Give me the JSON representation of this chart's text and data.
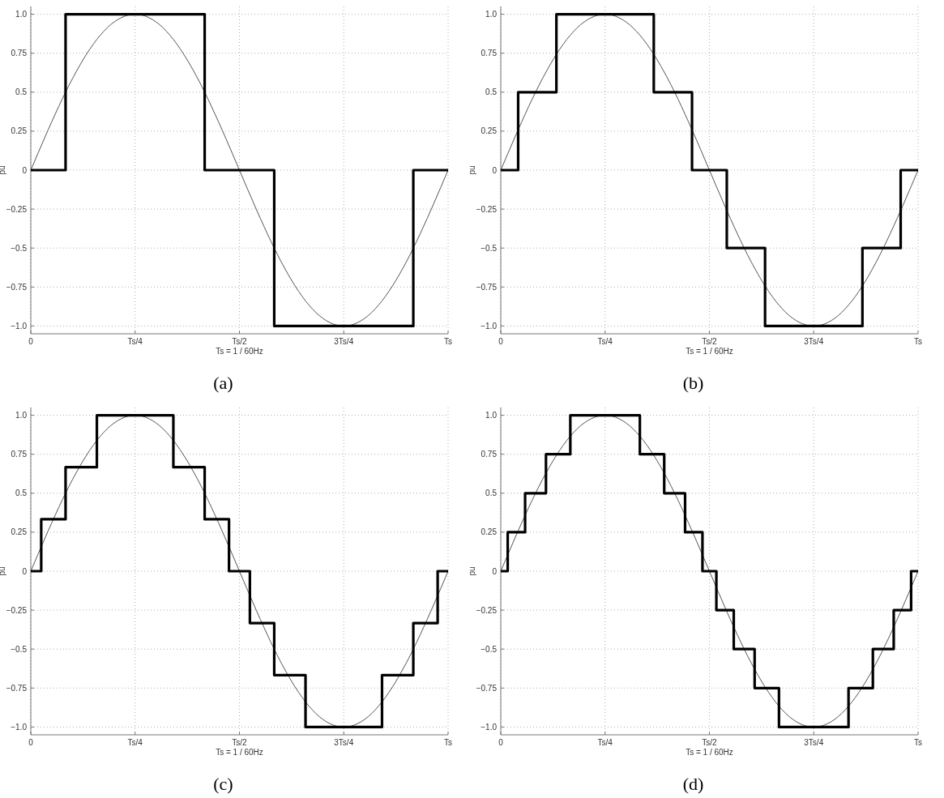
{
  "chart_data": [
    {
      "type": "line",
      "xlabel": "Ts = 1 / 60Hz",
      "ylabel": "pu",
      "annotations": [
        "(a)"
      ],
      "ylim": [
        -1.05,
        1.05
      ],
      "yticks": [
        {
          "value": -1,
          "label": "−1.0"
        },
        {
          "value": -0.75,
          "label": "−0.75"
        },
        {
          "value": -0.5,
          "label": "−0.5"
        },
        {
          "value": -0.25,
          "label": "−0.25"
        },
        0,
        0.25,
        0.5,
        0.75,
        {
          "value": 1,
          "label": "1.0"
        }
      ],
      "grid": true,
      "categories": [
        "0",
        null,
        null,
        null,
        null,
        null,
        null,
        null,
        null,
        null,
        null,
        null,
        null,
        null,
        null,
        null,
        null,
        null,
        null,
        null,
        null,
        null,
        null,
        null,
        null,
        null,
        null,
        null,
        null,
        null,
        "Ts/4",
        null,
        null,
        null,
        null,
        null,
        null,
        null,
        null,
        null,
        null,
        null,
        null,
        null,
        null,
        null,
        null,
        null,
        null,
        null,
        null,
        null,
        null,
        null,
        null,
        null,
        null,
        null,
        null,
        null,
        "Ts/2",
        null,
        null,
        null,
        null,
        null,
        null,
        null,
        null,
        null,
        null,
        null,
        null,
        null,
        null,
        null,
        null,
        null,
        null,
        null,
        null,
        null,
        null,
        null,
        null,
        null,
        null,
        null,
        null,
        null,
        "3Ts/4",
        null,
        null,
        null,
        null,
        null,
        null,
        null,
        null,
        null,
        null,
        null,
        null,
        null,
        null,
        null,
        null,
        null,
        null,
        null,
        null,
        null,
        null,
        null,
        null,
        null,
        null,
        null,
        null,
        null,
        "Ts"
      ],
      "series": [
        {
          "type": "line",
          "color": "#555555",
          "values": [
            0,
            0.052,
            0.105,
            0.156,
            0.208,
            0.259,
            0.309,
            0.358,
            0.407,
            0.454,
            0.5,
            0.545,
            0.588,
            0.629,
            0.669,
            0.707,
            0.743,
            0.777,
            0.809,
            0.839,
            0.866,
            0.891,
            0.914,
            0.934,
            0.951,
            0.966,
            0.978,
            0.988,
            0.995,
            0.999,
            1,
            0.999,
            0.995,
            0.988,
            0.978,
            0.966,
            0.951,
            0.934,
            0.914,
            0.891,
            0.866,
            0.839,
            0.809,
            0.777,
            0.743,
            0.707,
            0.669,
            0.629,
            0.588,
            0.545,
            0.5,
            0.454,
            0.407,
            0.358,
            0.309,
            0.259,
            0.208,
            0.156,
            0.105,
            0.052,
            0,
            -0.052,
            -0.105,
            -0.156,
            -0.208,
            -0.259,
            -0.309,
            -0.358,
            -0.407,
            -0.454,
            -0.5,
            -0.545,
            -0.588,
            -0.629,
            -0.669,
            -0.707,
            -0.743,
            -0.777,
            -0.809,
            -0.839,
            -0.866,
            -0.891,
            -0.914,
            -0.934,
            -0.951,
            -0.966,
            -0.978,
            -0.988,
            -0.995,
            -0.999,
            -1,
            -0.999,
            -0.995,
            -0.988,
            -0.978,
            -0.966,
            -0.951,
            -0.934,
            -0.914,
            -0.891,
            -0.866,
            -0.839,
            -0.809,
            -0.777,
            -0.743,
            -0.707,
            -0.669,
            -0.629,
            -0.588,
            -0.545,
            -0.5,
            -0.454,
            -0.407,
            -0.358,
            -0.309,
            -0.259,
            -0.208,
            -0.156,
            -0.105,
            -0.052,
            0
          ]
        },
        {
          "type": "step",
          "color": "#000000",
          "values": [
            0,
            0,
            0,
            0,
            0,
            0,
            0,
            0,
            0,
            0,
            1,
            1,
            1,
            1,
            1,
            1,
            1,
            1,
            1,
            1,
            1,
            1,
            1,
            1,
            1,
            1,
            1,
            1,
            1,
            1,
            1,
            1,
            1,
            1,
            1,
            1,
            1,
            1,
            1,
            1,
            1,
            1,
            1,
            1,
            1,
            1,
            1,
            1,
            1,
            1,
            0,
            0,
            0,
            0,
            0,
            0,
            0,
            0,
            0,
            0,
            0,
            0,
            0,
            0,
            0,
            0,
            0,
            0,
            0,
            0,
            -1,
            -1,
            -1,
            -1,
            -1,
            -1,
            -1,
            -1,
            -1,
            -1,
            -1,
            -1,
            -1,
            -1,
            -1,
            -1,
            -1,
            -1,
            -1,
            -1,
            -1,
            -1,
            -1,
            -1,
            -1,
            -1,
            -1,
            -1,
            -1,
            -1,
            -1,
            -1,
            -1,
            -1,
            -1,
            -1,
            -1,
            -1,
            -1,
            -1,
            0,
            0,
            0,
            0,
            0,
            0,
            0,
            0,
            0,
            0,
            0
          ]
        }
      ]
    },
    {
      "type": "line",
      "xlabel": "Ts = 1 / 60Hz",
      "ylabel": "pu",
      "annotations": [
        "(b)"
      ],
      "ylim": [
        -1.05,
        1.05
      ],
      "yticks": [
        {
          "value": -1,
          "label": "−1.0"
        },
        {
          "value": -0.75,
          "label": "−0.75"
        },
        {
          "value": -0.5,
          "label": "−0.5"
        },
        {
          "value": -0.25,
          "label": "−0.25"
        },
        0,
        0.25,
        0.5,
        0.75,
        {
          "value": 1,
          "label": "1.0"
        }
      ],
      "grid": true,
      "categories": [
        "0",
        null,
        null,
        null,
        null,
        null,
        null,
        null,
        null,
        null,
        null,
        null,
        null,
        null,
        null,
        null,
        null,
        null,
        null,
        null,
        null,
        null,
        null,
        null,
        null,
        null,
        null,
        null,
        null,
        null,
        "Ts/4",
        null,
        null,
        null,
        null,
        null,
        null,
        null,
        null,
        null,
        null,
        null,
        null,
        null,
        null,
        null,
        null,
        null,
        null,
        null,
        null,
        null,
        null,
        null,
        null,
        null,
        null,
        null,
        null,
        null,
        "Ts/2",
        null,
        null,
        null,
        null,
        null,
        null,
        null,
        null,
        null,
        null,
        null,
        null,
        null,
        null,
        null,
        null,
        null,
        null,
        null,
        null,
        null,
        null,
        null,
        null,
        null,
        null,
        null,
        null,
        null,
        "3Ts/4",
        null,
        null,
        null,
        null,
        null,
        null,
        null,
        null,
        null,
        null,
        null,
        null,
        null,
        null,
        null,
        null,
        null,
        null,
        null,
        null,
        null,
        null,
        null,
        null,
        null,
        null,
        null,
        null,
        null,
        "Ts"
      ],
      "series": [
        {
          "type": "line",
          "color": "#555555",
          "values": [
            0,
            0.052,
            0.105,
            0.156,
            0.208,
            0.259,
            0.309,
            0.358,
            0.407,
            0.454,
            0.5,
            0.545,
            0.588,
            0.629,
            0.669,
            0.707,
            0.743,
            0.777,
            0.809,
            0.839,
            0.866,
            0.891,
            0.914,
            0.934,
            0.951,
            0.966,
            0.978,
            0.988,
            0.995,
            0.999,
            1,
            0.999,
            0.995,
            0.988,
            0.978,
            0.966,
            0.951,
            0.934,
            0.914,
            0.891,
            0.866,
            0.839,
            0.809,
            0.777,
            0.743,
            0.707,
            0.669,
            0.629,
            0.588,
            0.545,
            0.5,
            0.454,
            0.407,
            0.358,
            0.309,
            0.259,
            0.208,
            0.156,
            0.105,
            0.052,
            0,
            -0.052,
            -0.105,
            -0.156,
            -0.208,
            -0.259,
            -0.309,
            -0.358,
            -0.407,
            -0.454,
            -0.5,
            -0.545,
            -0.588,
            -0.629,
            -0.669,
            -0.707,
            -0.743,
            -0.777,
            -0.809,
            -0.839,
            -0.866,
            -0.891,
            -0.914,
            -0.934,
            -0.951,
            -0.966,
            -0.978,
            -0.988,
            -0.995,
            -0.999,
            -1,
            -0.999,
            -0.995,
            -0.988,
            -0.978,
            -0.966,
            -0.951,
            -0.934,
            -0.914,
            -0.891,
            -0.866,
            -0.839,
            -0.809,
            -0.777,
            -0.743,
            -0.707,
            -0.669,
            -0.629,
            -0.588,
            -0.545,
            -0.5,
            -0.454,
            -0.407,
            -0.358,
            -0.309,
            -0.259,
            -0.208,
            -0.156,
            -0.105,
            -0.052,
            0
          ]
        },
        {
          "type": "step",
          "color": "#000000",
          "values": [
            0,
            0,
            0,
            0,
            0,
            0.5,
            0.5,
            0.5,
            0.5,
            0.5,
            0.5,
            0.5,
            0.5,
            0.5,
            0.5,
            0.5,
            1,
            1,
            1,
            1,
            1,
            1,
            1,
            1,
            1,
            1,
            1,
            1,
            1,
            1,
            1,
            1,
            1,
            1,
            1,
            1,
            1,
            1,
            1,
            1,
            1,
            1,
            1,
            1,
            0.5,
            0.5,
            0.5,
            0.5,
            0.5,
            0.5,
            0.5,
            0.5,
            0.5,
            0.5,
            0.5,
            0,
            0,
            0,
            0,
            0,
            0,
            0,
            0,
            0,
            0,
            -0.5,
            -0.5,
            -0.5,
            -0.5,
            -0.5,
            -0.5,
            -0.5,
            -0.5,
            -0.5,
            -0.5,
            -0.5,
            -1,
            -1,
            -1,
            -1,
            -1,
            -1,
            -1,
            -1,
            -1,
            -1,
            -1,
            -1,
            -1,
            -1,
            -1,
            -1,
            -1,
            -1,
            -1,
            -1,
            -1,
            -1,
            -1,
            -1,
            -1,
            -1,
            -1,
            -1,
            -0.5,
            -0.5,
            -0.5,
            -0.5,
            -0.5,
            -0.5,
            -0.5,
            -0.5,
            -0.5,
            -0.5,
            -0.5,
            0,
            0,
            0,
            0,
            0,
            0
          ]
        }
      ]
    },
    {
      "type": "line",
      "xlabel": "Ts = 1 / 60Hz",
      "ylabel": "pu",
      "annotations": [
        "(c)"
      ],
      "ylim": [
        -1.05,
        1.05
      ],
      "yticks": [
        {
          "value": -1,
          "label": "−1.0"
        },
        {
          "value": -0.75,
          "label": "−0.75"
        },
        {
          "value": -0.5,
          "label": "−0.5"
        },
        {
          "value": -0.25,
          "label": "−0.25"
        },
        0,
        0.25,
        0.5,
        0.75,
        {
          "value": 1,
          "label": "1.0"
        }
      ],
      "grid": true,
      "categories": [
        "0",
        null,
        null,
        null,
        null,
        null,
        null,
        null,
        null,
        null,
        null,
        null,
        null,
        null,
        null,
        null,
        null,
        null,
        null,
        null,
        null,
        null,
        null,
        null,
        null,
        null,
        null,
        null,
        null,
        null,
        "Ts/4",
        null,
        null,
        null,
        null,
        null,
        null,
        null,
        null,
        null,
        null,
        null,
        null,
        null,
        null,
        null,
        null,
        null,
        null,
        null,
        null,
        null,
        null,
        null,
        null,
        null,
        null,
        null,
        null,
        null,
        "Ts/2",
        null,
        null,
        null,
        null,
        null,
        null,
        null,
        null,
        null,
        null,
        null,
        null,
        null,
        null,
        null,
        null,
        null,
        null,
        null,
        null,
        null,
        null,
        null,
        null,
        null,
        null,
        null,
        null,
        null,
        "3Ts/4",
        null,
        null,
        null,
        null,
        null,
        null,
        null,
        null,
        null,
        null,
        null,
        null,
        null,
        null,
        null,
        null,
        null,
        null,
        null,
        null,
        null,
        null,
        null,
        null,
        null,
        null,
        null,
        null,
        null,
        "Ts"
      ],
      "series": [
        {
          "type": "line",
          "color": "#555555",
          "values": [
            0,
            0.052,
            0.105,
            0.156,
            0.208,
            0.259,
            0.309,
            0.358,
            0.407,
            0.454,
            0.5,
            0.545,
            0.588,
            0.629,
            0.669,
            0.707,
            0.743,
            0.777,
            0.809,
            0.839,
            0.866,
            0.891,
            0.914,
            0.934,
            0.951,
            0.966,
            0.978,
            0.988,
            0.995,
            0.999,
            1,
            0.999,
            0.995,
            0.988,
            0.978,
            0.966,
            0.951,
            0.934,
            0.914,
            0.891,
            0.866,
            0.839,
            0.809,
            0.777,
            0.743,
            0.707,
            0.669,
            0.629,
            0.588,
            0.545,
            0.5,
            0.454,
            0.407,
            0.358,
            0.309,
            0.259,
            0.208,
            0.156,
            0.105,
            0.052,
            0,
            -0.052,
            -0.105,
            -0.156,
            -0.208,
            -0.259,
            -0.309,
            -0.358,
            -0.407,
            -0.454,
            -0.5,
            -0.545,
            -0.588,
            -0.629,
            -0.669,
            -0.707,
            -0.743,
            -0.777,
            -0.809,
            -0.839,
            -0.866,
            -0.891,
            -0.914,
            -0.934,
            -0.951,
            -0.966,
            -0.978,
            -0.988,
            -0.995,
            -0.999,
            -1,
            -0.999,
            -0.995,
            -0.988,
            -0.978,
            -0.966,
            -0.951,
            -0.934,
            -0.914,
            -0.891,
            -0.866,
            -0.839,
            -0.809,
            -0.777,
            -0.743,
            -0.707,
            -0.669,
            -0.629,
            -0.588,
            -0.545,
            -0.5,
            -0.454,
            -0.407,
            -0.358,
            -0.309,
            -0.259,
            -0.208,
            -0.156,
            -0.105,
            -0.052,
            0
          ]
        },
        {
          "type": "step",
          "color": "#000000",
          "values": [
            0,
            0,
            0,
            0.333,
            0.333,
            0.333,
            0.333,
            0.333,
            0.333,
            0.333,
            0.667,
            0.667,
            0.667,
            0.667,
            0.667,
            0.667,
            0.667,
            0.667,
            0.667,
            1,
            1,
            1,
            1,
            1,
            1,
            1,
            1,
            1,
            1,
            1,
            1,
            1,
            1,
            1,
            1,
            1,
            1,
            1,
            1,
            1,
            1,
            0.667,
            0.667,
            0.667,
            0.667,
            0.667,
            0.667,
            0.667,
            0.667,
            0.667,
            0.333,
            0.333,
            0.333,
            0.333,
            0.333,
            0.333,
            0.333,
            0,
            0,
            0,
            0,
            0,
            0,
            -0.333,
            -0.333,
            -0.333,
            -0.333,
            -0.333,
            -0.333,
            -0.333,
            -0.667,
            -0.667,
            -0.667,
            -0.667,
            -0.667,
            -0.667,
            -0.667,
            -0.667,
            -0.667,
            -1,
            -1,
            -1,
            -1,
            -1,
            -1,
            -1,
            -1,
            -1,
            -1,
            -1,
            -1,
            -1,
            -1,
            -1,
            -1,
            -1,
            -1,
            -1,
            -1,
            -1,
            -1,
            -0.667,
            -0.667,
            -0.667,
            -0.667,
            -0.667,
            -0.667,
            -0.667,
            -0.667,
            -0.667,
            -0.333,
            -0.333,
            -0.333,
            -0.333,
            -0.333,
            -0.333,
            -0.333,
            0,
            0,
            0,
            0
          ]
        }
      ]
    },
    {
      "type": "line",
      "xlabel": "Ts = 1 / 60Hz",
      "ylabel": "pu",
      "annotations": [
        "(d)"
      ],
      "ylim": [
        -1.05,
        1.05
      ],
      "yticks": [
        {
          "value": -1,
          "label": "−1.0"
        },
        {
          "value": -0.75,
          "label": "−0.75"
        },
        {
          "value": -0.5,
          "label": "−0.5"
        },
        {
          "value": -0.25,
          "label": "−0.25"
        },
        0,
        0.25,
        0.5,
        0.75,
        {
          "value": 1,
          "label": "1.0"
        }
      ],
      "grid": true,
      "categories": [
        "0",
        null,
        null,
        null,
        null,
        null,
        null,
        null,
        null,
        null,
        null,
        null,
        null,
        null,
        null,
        null,
        null,
        null,
        null,
        null,
        null,
        null,
        null,
        null,
        null,
        null,
        null,
        null,
        null,
        null,
        "Ts/4",
        null,
        null,
        null,
        null,
        null,
        null,
        null,
        null,
        null,
        null,
        null,
        null,
        null,
        null,
        null,
        null,
        null,
        null,
        null,
        null,
        null,
        null,
        null,
        null,
        null,
        null,
        null,
        null,
        null,
        "Ts/2",
        null,
        null,
        null,
        null,
        null,
        null,
        null,
        null,
        null,
        null,
        null,
        null,
        null,
        null,
        null,
        null,
        null,
        null,
        null,
        null,
        null,
        null,
        null,
        null,
        null,
        null,
        null,
        null,
        null,
        "3Ts/4",
        null,
        null,
        null,
        null,
        null,
        null,
        null,
        null,
        null,
        null,
        null,
        null,
        null,
        null,
        null,
        null,
        null,
        null,
        null,
        null,
        null,
        null,
        null,
        null,
        null,
        null,
        null,
        null,
        null,
        "Ts"
      ],
      "series": [
        {
          "type": "line",
          "color": "#555555",
          "values": [
            0,
            0.052,
            0.105,
            0.156,
            0.208,
            0.259,
            0.309,
            0.358,
            0.407,
            0.454,
            0.5,
            0.545,
            0.588,
            0.629,
            0.669,
            0.707,
            0.743,
            0.777,
            0.809,
            0.839,
            0.866,
            0.891,
            0.914,
            0.934,
            0.951,
            0.966,
            0.978,
            0.988,
            0.995,
            0.999,
            1,
            0.999,
            0.995,
            0.988,
            0.978,
            0.966,
            0.951,
            0.934,
            0.914,
            0.891,
            0.866,
            0.839,
            0.809,
            0.777,
            0.743,
            0.707,
            0.669,
            0.629,
            0.588,
            0.545,
            0.5,
            0.454,
            0.407,
            0.358,
            0.309,
            0.259,
            0.208,
            0.156,
            0.105,
            0.052,
            0,
            -0.052,
            -0.105,
            -0.156,
            -0.208,
            -0.259,
            -0.309,
            -0.358,
            -0.407,
            -0.454,
            -0.5,
            -0.545,
            -0.588,
            -0.629,
            -0.669,
            -0.707,
            -0.743,
            -0.777,
            -0.809,
            -0.839,
            -0.866,
            -0.891,
            -0.914,
            -0.934,
            -0.951,
            -0.966,
            -0.978,
            -0.988,
            -0.995,
            -0.999,
            -1,
            -0.999,
            -0.995,
            -0.988,
            -0.978,
            -0.966,
            -0.951,
            -0.934,
            -0.914,
            -0.891,
            -0.866,
            -0.839,
            -0.809,
            -0.777,
            -0.743,
            -0.707,
            -0.669,
            -0.629,
            -0.588,
            -0.545,
            -0.5,
            -0.454,
            -0.407,
            -0.358,
            -0.309,
            -0.259,
            -0.208,
            -0.156,
            -0.105,
            -0.052,
            0
          ]
        },
        {
          "type": "step",
          "color": "#000000",
          "values": [
            0,
            0,
            0.25,
            0.25,
            0.25,
            0.25,
            0.25,
            0.5,
            0.5,
            0.5,
            0.5,
            0.5,
            0.5,
            0.75,
            0.75,
            0.75,
            0.75,
            0.75,
            0.75,
            0.75,
            1,
            1,
            1,
            1,
            1,
            1,
            1,
            1,
            1,
            1,
            1,
            1,
            1,
            1,
            1,
            1,
            1,
            1,
            1,
            1,
            0.75,
            0.75,
            0.75,
            0.75,
            0.75,
            0.75,
            0.75,
            0.5,
            0.5,
            0.5,
            0.5,
            0.5,
            0.5,
            0.25,
            0.25,
            0.25,
            0.25,
            0.25,
            0,
            0,
            0,
            0,
            -0.25,
            -0.25,
            -0.25,
            -0.25,
            -0.25,
            -0.5,
            -0.5,
            -0.5,
            -0.5,
            -0.5,
            -0.5,
            -0.75,
            -0.75,
            -0.75,
            -0.75,
            -0.75,
            -0.75,
            -0.75,
            -1,
            -1,
            -1,
            -1,
            -1,
            -1,
            -1,
            -1,
            -1,
            -1,
            -1,
            -1,
            -1,
            -1,
            -1,
            -1,
            -1,
            -1,
            -1,
            -1,
            -0.75,
            -0.75,
            -0.75,
            -0.75,
            -0.75,
            -0.75,
            -0.75,
            -0.5,
            -0.5,
            -0.5,
            -0.5,
            -0.5,
            -0.5,
            -0.25,
            -0.25,
            -0.25,
            -0.25,
            -0.25,
            0,
            0,
            0
          ]
        }
      ]
    }
  ]
}
